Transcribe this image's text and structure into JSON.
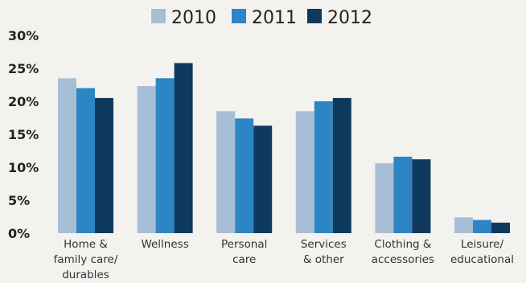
{
  "chart_data": {
    "type": "bar",
    "categories": [
      [
        "Home &",
        "family care/",
        "durables"
      ],
      [
        "Wellness"
      ],
      [
        "Personal",
        "care"
      ],
      [
        "Services",
        "& other"
      ],
      [
        "Clothing &",
        "accessories"
      ],
      [
        "Leisure/",
        "educational"
      ]
    ],
    "series": [
      {
        "name": "2010",
        "color": "#a7bfd6",
        "values": [
          23.5,
          22.3,
          18.5,
          18.5,
          10.6,
          2.4
        ]
      },
      {
        "name": "2011",
        "color": "#2d85c3",
        "values": [
          22.0,
          23.5,
          17.4,
          20.0,
          11.6,
          2.0
        ]
      },
      {
        "name": "2012",
        "color": "#0f3a5e",
        "values": [
          20.5,
          25.8,
          16.3,
          20.5,
          11.2,
          1.6
        ]
      }
    ],
    "yticks": [
      "0%",
      "5%",
      "10%",
      "15%",
      "20%",
      "25%",
      "30%"
    ],
    "ylim": [
      0,
      30
    ],
    "legend_position": "top-center",
    "grid": false
  }
}
